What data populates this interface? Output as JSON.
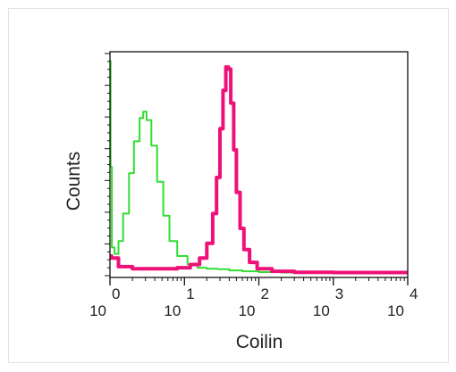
{
  "chart_data": {
    "type": "area",
    "title": "",
    "xlabel": "Coilin",
    "ylabel": "Counts",
    "x_scale": "log",
    "xlim": [
      1,
      10000
    ],
    "ylim": [
      0,
      1
    ],
    "grid": false,
    "legend": "none",
    "x_ticks": [
      {
        "base": "10",
        "exp": "0",
        "value": 1
      },
      {
        "base": "10",
        "exp": "1",
        "value": 10
      },
      {
        "base": "10",
        "exp": "2",
        "value": 100
      },
      {
        "base": "10",
        "exp": "3",
        "value": 1000
      },
      {
        "base": "10",
        "exp": "4",
        "value": 10000
      }
    ],
    "series": [
      {
        "color": "#33dd33",
        "points": [
          [
            1.0,
            1.0
          ],
          [
            1.02,
            0.5
          ],
          [
            1.06,
            0.12
          ],
          [
            1.15,
            0.09
          ],
          [
            1.3,
            0.15
          ],
          [
            1.5,
            0.28
          ],
          [
            1.8,
            0.47
          ],
          [
            2.1,
            0.62
          ],
          [
            2.5,
            0.73
          ],
          [
            2.8,
            0.76
          ],
          [
            3.1,
            0.72
          ],
          [
            3.6,
            0.6
          ],
          [
            4.3,
            0.43
          ],
          [
            5.2,
            0.27
          ],
          [
            6.3,
            0.15
          ],
          [
            8.0,
            0.08
          ],
          [
            11,
            0.04
          ],
          [
            15,
            0.025
          ],
          [
            20,
            0.02
          ],
          [
            28,
            0.018
          ],
          [
            40,
            0.012
          ],
          [
            60,
            0.008
          ],
          [
            100,
            0.004
          ],
          [
            200,
            0.002
          ],
          [
            1000,
            0.0
          ],
          [
            10000,
            0.0
          ]
        ]
      },
      {
        "color": "#ee1177",
        "points": [
          [
            1.0,
            0.08
          ],
          [
            1.05,
            0.07
          ],
          [
            1.3,
            0.03
          ],
          [
            2.0,
            0.02
          ],
          [
            4.0,
            0.02
          ],
          [
            8.0,
            0.025
          ],
          [
            12,
            0.04
          ],
          [
            16,
            0.07
          ],
          [
            20,
            0.14
          ],
          [
            24,
            0.28
          ],
          [
            27,
            0.45
          ],
          [
            30,
            0.68
          ],
          [
            33,
            0.86
          ],
          [
            36,
            0.97
          ],
          [
            39,
            0.96
          ],
          [
            42,
            0.8
          ],
          [
            46,
            0.58
          ],
          [
            50,
            0.38
          ],
          [
            56,
            0.21
          ],
          [
            63,
            0.11
          ],
          [
            75,
            0.05
          ],
          [
            95,
            0.02
          ],
          [
            150,
            0.008
          ],
          [
            300,
            0.003
          ],
          [
            1000,
            0.002
          ],
          [
            10000,
            0.002
          ]
        ]
      }
    ]
  }
}
